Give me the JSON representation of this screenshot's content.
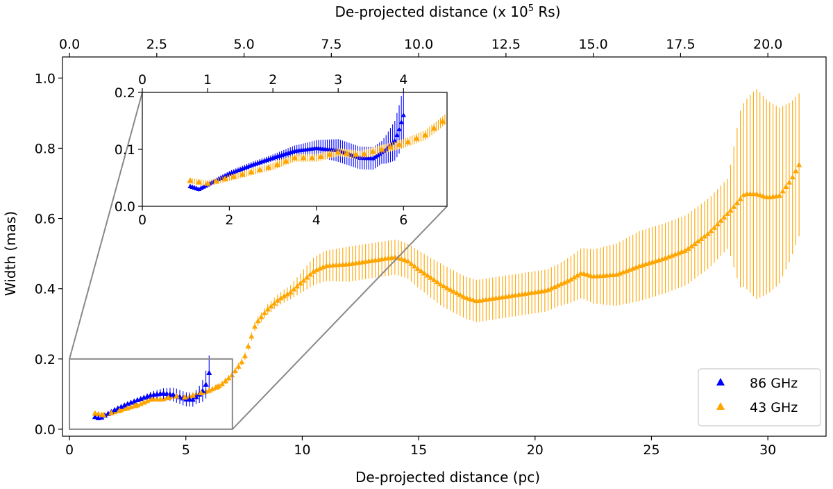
{
  "chart_data": {
    "type": "scatter",
    "xlabel": "De-projected distance (pc)",
    "ylabel": "Width (mas)",
    "top_xlabel_prefix": "De-projected distance (x 10",
    "top_xlabel_exp": "5",
    "top_xlabel_suffix": " Rs)",
    "xlim": [
      -0.3,
      32.5
    ],
    "ylim": [
      -0.02,
      1.06
    ],
    "xticks": [
      0,
      5,
      10,
      15,
      20,
      25,
      30
    ],
    "yticks": [
      0.0,
      0.2,
      0.4,
      0.6,
      0.8,
      1.0
    ],
    "yticklabels": [
      "0.0",
      "0.2",
      "0.4",
      "0.6",
      "0.8",
      "1.0"
    ],
    "top_ticks": [
      0.0,
      2.5,
      5.0,
      7.5,
      10.0,
      12.5,
      15.0,
      17.5,
      20.0
    ],
    "top_ticklabels": [
      "0.0",
      "2.5",
      "5.0",
      "7.5",
      "10.0",
      "12.5",
      "15.0",
      "17.5",
      "20.0"
    ],
    "pc_per_1e5rs": 1.5,
    "legend": {
      "location": "bottom-right",
      "entries": [
        {
          "label": "86 GHz",
          "color": "#0000ff"
        },
        {
          "label": "43 GHz",
          "color": "#ffa500"
        }
      ]
    },
    "zoom_box": {
      "x": [
        0,
        7
      ],
      "y": [
        0,
        0.2
      ]
    },
    "series": [
      {
        "name": "86 GHz",
        "color": "#0000ff",
        "marker": "triangle",
        "x_range": [
          1.1,
          6.0
        ],
        "profile": [
          [
            1.1,
            0.035
          ],
          [
            1.3,
            0.03
          ],
          [
            1.6,
            0.042
          ],
          [
            2.0,
            0.057
          ],
          [
            2.5,
            0.072
          ],
          [
            3.0,
            0.085
          ],
          [
            3.5,
            0.097
          ],
          [
            4.0,
            0.102
          ],
          [
            4.5,
            0.098
          ],
          [
            5.0,
            0.085
          ],
          [
            5.3,
            0.084
          ],
          [
            5.6,
            0.1
          ],
          [
            5.8,
            0.115
          ],
          [
            5.9,
            0.135
          ],
          [
            6.0,
            0.16
          ]
        ],
        "error_profile": [
          [
            1.1,
            0.004
          ],
          [
            3.0,
            0.006
          ],
          [
            3.8,
            0.012
          ],
          [
            4.5,
            0.02
          ],
          [
            5.0,
            0.02
          ],
          [
            5.5,
            0.02
          ],
          [
            5.8,
            0.035
          ],
          [
            6.0,
            0.05
          ]
        ]
      },
      {
        "name": "43 GHz",
        "color": "#ffa500",
        "marker": "triangle",
        "x_range": [
          1.1,
          31.4
        ],
        "profile": [
          [
            1.1,
            0.045
          ],
          [
            1.5,
            0.04
          ],
          [
            2.0,
            0.05
          ],
          [
            2.5,
            0.06
          ],
          [
            3.0,
            0.07
          ],
          [
            3.5,
            0.085
          ],
          [
            4.0,
            0.085
          ],
          [
            4.5,
            0.095
          ],
          [
            5.0,
            0.09
          ],
          [
            5.5,
            0.1
          ],
          [
            6.0,
            0.11
          ],
          [
            6.5,
            0.125
          ],
          [
            7.0,
            0.155
          ],
          [
            7.5,
            0.2
          ],
          [
            7.8,
            0.26
          ],
          [
            8.0,
            0.3
          ],
          [
            8.5,
            0.34
          ],
          [
            9.0,
            0.37
          ],
          [
            9.5,
            0.39
          ],
          [
            10.0,
            0.42
          ],
          [
            10.5,
            0.45
          ],
          [
            11.0,
            0.465
          ],
          [
            12.0,
            0.47
          ],
          [
            13.0,
            0.48
          ],
          [
            14.0,
            0.49
          ],
          [
            14.5,
            0.48
          ],
          [
            15.0,
            0.455
          ],
          [
            16.0,
            0.41
          ],
          [
            17.0,
            0.375
          ],
          [
            17.5,
            0.365
          ],
          [
            18.5,
            0.375
          ],
          [
            19.5,
            0.385
          ],
          [
            20.5,
            0.395
          ],
          [
            21.5,
            0.425
          ],
          [
            22.0,
            0.445
          ],
          [
            22.5,
            0.435
          ],
          [
            23.5,
            0.44
          ],
          [
            24.5,
            0.465
          ],
          [
            25.5,
            0.485
          ],
          [
            26.5,
            0.51
          ],
          [
            27.5,
            0.56
          ],
          [
            28.5,
            0.63
          ],
          [
            29.0,
            0.67
          ],
          [
            29.5,
            0.67
          ],
          [
            30.0,
            0.66
          ],
          [
            30.5,
            0.665
          ],
          [
            31.0,
            0.71
          ],
          [
            31.4,
            0.76
          ]
        ],
        "error_profile": [
          [
            1.1,
            0.005
          ],
          [
            6.0,
            0.008
          ],
          [
            7.5,
            0.01
          ],
          [
            9.5,
            0.02
          ],
          [
            10.5,
            0.04
          ],
          [
            12.0,
            0.05
          ],
          [
            14.5,
            0.05
          ],
          [
            16.0,
            0.06
          ],
          [
            18.0,
            0.06
          ],
          [
            21.0,
            0.06
          ],
          [
            24.5,
            0.1
          ],
          [
            26.5,
            0.1
          ],
          [
            28.3,
            0.1
          ],
          [
            28.8,
            0.25
          ],
          [
            29.5,
            0.3
          ],
          [
            30.5,
            0.25
          ],
          [
            31.4,
            0.2
          ]
        ]
      }
    ],
    "inset": {
      "xlim": [
        0,
        7
      ],
      "ylim": [
        0,
        0.2
      ],
      "xticks": [
        0,
        2,
        4,
        6
      ],
      "yticks": [
        0.0,
        0.1,
        0.2
      ],
      "yticklabels": [
        "0.0",
        "0.1",
        "0.2"
      ],
      "top_ticks": [
        0,
        1,
        2,
        3,
        4
      ],
      "top_ticklabels": [
        "0",
        "1",
        "2",
        "3",
        "4"
      ]
    }
  }
}
